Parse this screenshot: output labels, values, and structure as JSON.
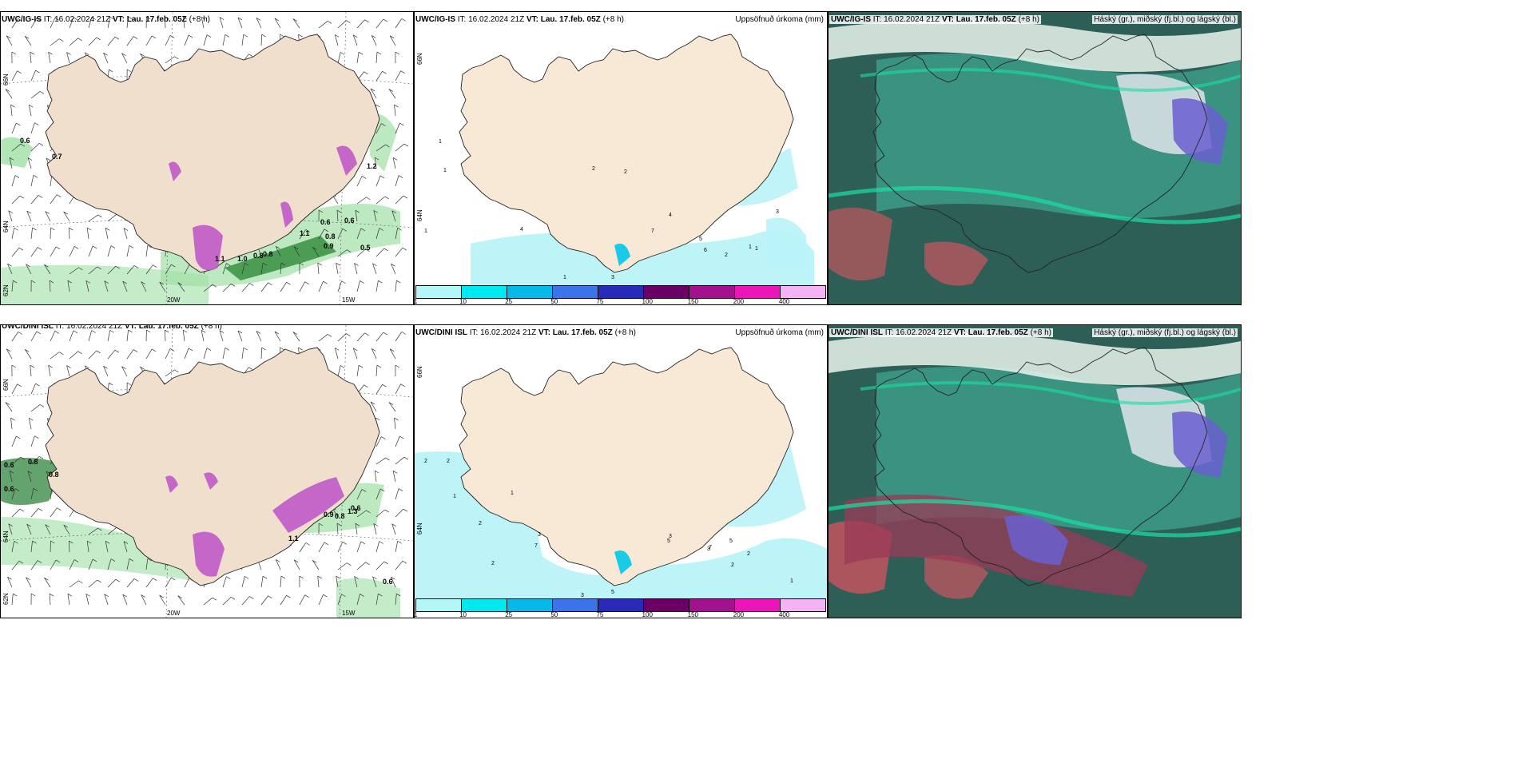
{
  "panels": [
    {
      "id": "p1",
      "type": "wind",
      "header": {
        "model": "UWC/IG-IS",
        "it_label": "IT:",
        "it": "16.02.2024 21Z",
        "vt_label": "VT:",
        "vt": "Lau. 17.feb. 05Z",
        "offset": "(+8 h)"
      },
      "lat_labels": [
        "66N",
        "64N",
        "62N"
      ],
      "lon_labels": [
        "20W",
        "15W"
      ],
      "values": [
        "0.6",
        "0.7",
        "1.1",
        "1.0",
        "0.8",
        "0.8",
        "1.1",
        "0.6",
        "0.6",
        "0.8",
        "0.9",
        "0.5",
        "1.2"
      ]
    },
    {
      "id": "p2",
      "type": "precip",
      "header": {
        "model": "UWC/IG-IS",
        "it_label": "IT:",
        "it": "16.02.2024 21Z",
        "vt_label": "VT:",
        "vt": "Lau. 17.feb. 05Z",
        "offset": "(+8 h)"
      },
      "title": "Uppsöfnuð úrkoma (mm)",
      "lat_labels": [
        "66N",
        "64N"
      ],
      "values": [
        "1",
        "1",
        "1",
        "4",
        "2",
        "2",
        "1",
        "3",
        "6",
        "5",
        "7",
        "4",
        "1",
        "1",
        "2",
        "3"
      ]
    },
    {
      "id": "p3",
      "type": "cloud",
      "header": {
        "model": "UWC/IG-IS",
        "it_label": "IT:",
        "it": "16.02.2024 21Z",
        "vt_label": "VT:",
        "vt": "Lau. 17.feb. 05Z",
        "offset": "(+8 h)"
      },
      "title": "Háský (gr.), miðský (fj.bl.) og lágský (bl.)"
    },
    {
      "id": "p4",
      "type": "wind",
      "header": {
        "model": "UWC/DINI ISL",
        "it_label": "IT:",
        "it": "16.02.2024 21Z",
        "vt_label": "VT:",
        "vt": "Lau. 17.feb. 05Z",
        "offset": "(+8 h)"
      },
      "lat_labels": [
        "66N",
        "64N",
        "62N"
      ],
      "lon_labels": [
        "20W",
        "15W"
      ],
      "values": [
        "0.6",
        "0.8",
        "0.6",
        "1.1",
        "0.9",
        "0.8",
        "0.6",
        "0.6",
        "1.3",
        "0.8"
      ]
    },
    {
      "id": "p5",
      "type": "precip",
      "header": {
        "model": "UWC/DINI ISL",
        "it_label": "IT:",
        "it": "16.02.2024 21Z",
        "vt_label": "VT:",
        "vt": "Lau. 17.feb. 05Z",
        "offset": "(+8 h)"
      },
      "title": "Uppsöfnuð úrkoma (mm)",
      "lat_labels": [
        "66N",
        "64N"
      ],
      "values": [
        "2",
        "2",
        "1",
        "2",
        "1",
        "7",
        "3",
        "2",
        "5",
        "3",
        "3",
        "5",
        "7",
        "2",
        "2",
        "3",
        "5",
        "1"
      ]
    },
    {
      "id": "p6",
      "type": "cloud",
      "header": {
        "model": "UWC/DINI ISL",
        "it_label": "IT:",
        "it": "16.02.2024 21Z",
        "vt_label": "VT:",
        "vt": "Lau. 17.feb. 05Z",
        "offset": "(+8 h)"
      },
      "title": "Háský (gr.), miðský (fj.bl.) og lágský (bl.)"
    }
  ],
  "colorbar": {
    "colors": [
      "#b3f7f9",
      "#00e8f0",
      "#06b9e8",
      "#3b73e8",
      "#2a2ab8",
      "#6a0066",
      "#a3118f",
      "#ec15b7",
      "#f4b3f4"
    ],
    "ticks": [
      "1",
      "10",
      "25",
      "50",
      "75",
      "100",
      "150",
      "200",
      "400"
    ]
  },
  "colors": {
    "land": "#f8e9d6",
    "land_wind": "#f0dfcc",
    "sea_precip": "#b9f3f7",
    "cloud_dark": "#2d5f57",
    "cloud_teal": "#3fa38f",
    "wind_green": "#9fe0a4"
  }
}
